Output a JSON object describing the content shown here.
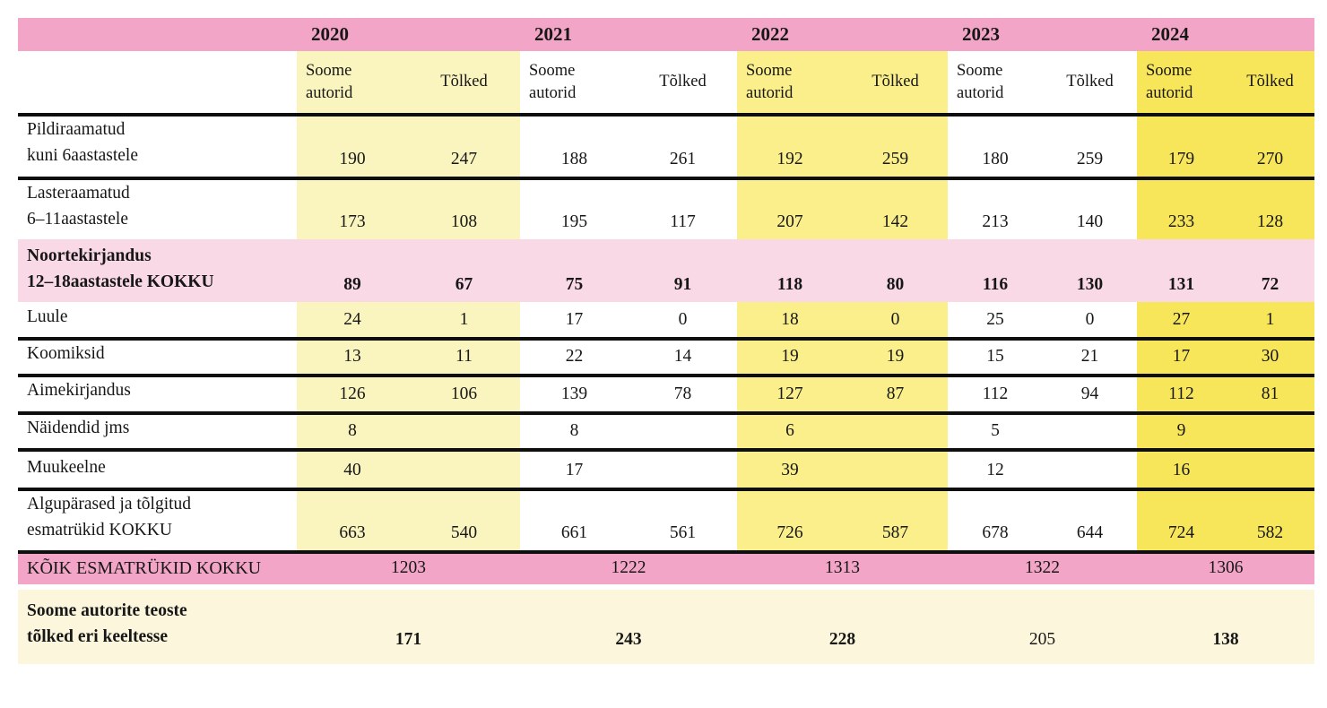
{
  "chart_data": {
    "type": "table",
    "years": [
      "2020",
      "2021",
      "2022",
      "2023",
      "2024"
    ],
    "sub_columns": [
      "Soome autorid",
      "Tõlked"
    ],
    "rows": [
      {
        "label_lines": [
          "Pildiraamatud",
          "kuni 6aastastele"
        ],
        "values": [
          "190",
          "247",
          "188",
          "261",
          "192",
          "259",
          "180",
          "259",
          "179",
          "270"
        ]
      },
      {
        "label_lines": [
          "Lasteraamatud",
          "6–11aastastele"
        ],
        "values": [
          "173",
          "108",
          "195",
          "117",
          "207",
          "142",
          "213",
          "140",
          "233",
          "128"
        ]
      },
      {
        "label_lines": [
          "Noortekirjandus",
          "12–18aastastele KOKKU"
        ],
        "style": "pink",
        "bold": true,
        "values": [
          "89",
          "67",
          "75",
          "91",
          "118",
          "80",
          "116",
          "130",
          "131",
          "72"
        ]
      },
      {
        "label_lines": [
          "Luule"
        ],
        "values": [
          "24",
          "1",
          "17",
          "0",
          "18",
          "0",
          "25",
          "0",
          "27",
          "1"
        ]
      },
      {
        "label_lines": [
          "Koomiksid"
        ],
        "values": [
          "13",
          "11",
          "22",
          "14",
          "19",
          "19",
          "15",
          "21",
          "17",
          "30"
        ]
      },
      {
        "label_lines": [
          "Aimekirjandus"
        ],
        "values": [
          "126",
          "106",
          "139",
          "78",
          "127",
          "87",
          "112",
          "94",
          "112",
          "81"
        ]
      },
      {
        "label_lines": [
          "Näidendid jms"
        ],
        "values": [
          "8",
          "",
          "8",
          "",
          "6",
          "",
          "5",
          "",
          "9",
          ""
        ]
      },
      {
        "label_lines": [
          "Muukeelne"
        ],
        "values": [
          "40",
          "",
          "17",
          "",
          "39",
          "",
          "12",
          "",
          "16",
          ""
        ]
      },
      {
        "label_lines": [
          "Algupärased ja tõlgitud",
          "esmatrükid KOKKU"
        ],
        "values": [
          "663",
          "540",
          "661",
          "561",
          "726",
          "587",
          "678",
          "644",
          "724",
          "582"
        ]
      }
    ],
    "totals_row": {
      "label": "KÕIK ESMATRÜKID KOKKU",
      "values": [
        "1203",
        "1222",
        "1313",
        "1322",
        "1306"
      ]
    },
    "translations_row": {
      "label_lines": [
        "Soome autorite teoste",
        "tõlked eri keeltesse"
      ],
      "values": [
        "171",
        "243",
        "228",
        "205",
        "138"
      ],
      "bold": [
        true,
        true,
        true,
        false,
        true
      ]
    }
  },
  "colors": {
    "header_pink": "#F2A5C6",
    "light_pink": "#FAD9E6",
    "pale_yellow": "#FAF4BE",
    "mid_yellow": "#FAEF8B",
    "bright_yellow": "#F8E65A",
    "cream": "#FCF6DC",
    "rule_black": "#0E0E0E"
  }
}
